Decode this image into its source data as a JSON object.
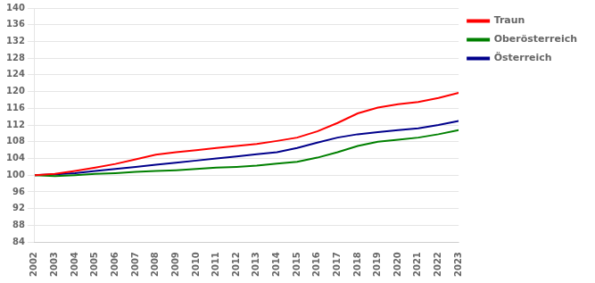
{
  "chart_data": {
    "type": "line",
    "x": [
      2002,
      2003,
      2004,
      2005,
      2006,
      2007,
      2008,
      2009,
      2010,
      2011,
      2012,
      2013,
      2014,
      2015,
      2016,
      2017,
      2018,
      2019,
      2020,
      2021,
      2022,
      2023
    ],
    "series": [
      {
        "name": "Traun",
        "color": "#ff0000",
        "values": [
          100.0,
          100.3,
          101.0,
          101.8,
          102.7,
          103.8,
          104.9,
          105.5,
          106.0,
          106.5,
          107.0,
          107.5,
          108.2,
          109.0,
          110.5,
          112.5,
          114.8,
          116.2,
          117.0,
          117.5,
          118.5,
          119.7
        ]
      },
      {
        "name": "Oberösterreich",
        "color": "#008000",
        "values": [
          100.0,
          99.8,
          100.0,
          100.3,
          100.5,
          100.8,
          101.0,
          101.2,
          101.5,
          101.8,
          102.0,
          102.3,
          102.8,
          103.2,
          104.2,
          105.5,
          107.0,
          108.0,
          108.5,
          109.0,
          109.8,
          110.8
        ]
      },
      {
        "name": "Österreich",
        "color": "#00008b",
        "values": [
          100.0,
          100.2,
          100.5,
          101.0,
          101.5,
          102.0,
          102.5,
          103.0,
          103.5,
          104.0,
          104.5,
          105.0,
          105.5,
          106.5,
          107.8,
          109.0,
          109.8,
          110.3,
          110.8,
          111.2,
          112.0,
          113.0
        ]
      }
    ],
    "xlim": [
      2002,
      2023
    ],
    "xticks": [
      2002,
      2003,
      2004,
      2005,
      2006,
      2007,
      2008,
      2009,
      2010,
      2011,
      2012,
      2013,
      2014,
      2015,
      2016,
      2017,
      2018,
      2019,
      2020,
      2021,
      2022,
      2023
    ],
    "ylim": [
      84,
      140
    ],
    "yticks": [
      84,
      88,
      92,
      96,
      100,
      104,
      108,
      112,
      116,
      120,
      124,
      128,
      132,
      136,
      140
    ],
    "grid": "y",
    "legend": "right"
  }
}
